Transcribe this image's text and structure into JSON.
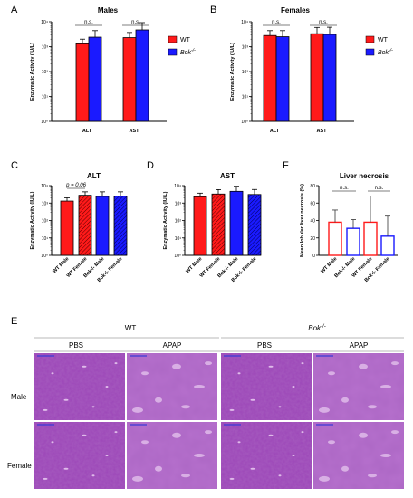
{
  "panel_labels": {
    "a": "A",
    "b": "B",
    "c": "C",
    "d": "D",
    "f": "F",
    "e": "E"
  },
  "legend": {
    "wt": "WT",
    "bok": "Bok",
    "bok_sup": "-/-"
  },
  "sig": {
    "ns": "n.s.",
    "p": "p = 0.06"
  },
  "yaxis_ticks": [
    "10⁴",
    "10³",
    "10²",
    "10¹",
    "10⁰"
  ],
  "yaxis_ticks_d": [
    "10⁴",
    "10³",
    "10²",
    "10¹",
    "10⁰"
  ],
  "necrosis_ticks": [
    "80",
    "60",
    "40",
    "20",
    "0"
  ],
  "histology": {
    "group_wt": "WT",
    "group_bok": "Bok",
    "group_bok_sup": "-/-",
    "cols": [
      "PBS",
      "APAP",
      "PBS",
      "APAP"
    ],
    "rows": [
      "Male",
      "Female"
    ]
  },
  "colors": {
    "wt": "#ff1a1a",
    "bok": "#1a1aff",
    "tissue": "#a84fc2",
    "tissue_dark": "#6a2c86",
    "tissue_light": "#e6c6ee"
  },
  "chart_data": [
    {
      "panel": "A",
      "type": "bar",
      "title": "Males",
      "ylabel": "Enzymatic Activity (IU/L)",
      "yscale": "log",
      "ylim": [
        1,
        10000
      ],
      "categories": [
        "ALT",
        "AST"
      ],
      "series": [
        {
          "name": "WT",
          "values": [
            1300,
            2300
          ],
          "err": [
            700,
            1400
          ]
        },
        {
          "name": "Bok-/-",
          "values": [
            2400,
            4700
          ],
          "err": [
            2000,
            4500
          ]
        }
      ],
      "annotations": [
        "n.s.",
        "n.s."
      ]
    },
    {
      "panel": "B",
      "type": "bar",
      "title": "Females",
      "ylabel": "Enzymatic Activity (IU/L)",
      "yscale": "log",
      "ylim": [
        1,
        10000
      ],
      "categories": [
        "ALT",
        "AST"
      ],
      "series": [
        {
          "name": "WT",
          "values": [
            2800,
            3300
          ],
          "err": [
            1600,
            2600
          ]
        },
        {
          "name": "Bok-/-",
          "values": [
            2500,
            3100
          ],
          "err": [
            1900,
            2900
          ]
        }
      ],
      "annotations": [
        "n.s.",
        "n.s."
      ]
    },
    {
      "panel": "C",
      "type": "bar",
      "title": "ALT",
      "ylabel": "Enzymatic Activity (IU/L)",
      "yscale": "log",
      "ylim": [
        1,
        10000
      ],
      "categories": [
        "WT Male",
        "WT Female",
        "Bok-/- Male",
        "Bok-/- Female"
      ],
      "values": [
        1300,
        2800,
        2400,
        2500
      ],
      "err": [
        700,
        1600,
        2000,
        1900
      ],
      "annotations": [
        "p = 0.06"
      ]
    },
    {
      "panel": "D",
      "type": "bar",
      "title": "AST",
      "ylabel": "Enzymatic Activity (IU/L)",
      "yscale": "log",
      "ylim": [
        1,
        10000
      ],
      "categories": [
        "WT Male",
        "WT Female",
        "Bok-/- Male",
        "Bok-/- Female"
      ],
      "values": [
        2300,
        3300,
        4700,
        3100
      ],
      "err": [
        1400,
        2600,
        4500,
        2900
      ]
    },
    {
      "panel": "F",
      "type": "bar",
      "title": "Liver necrosis",
      "ylabel": "Mean lobular liver necrosis (%)",
      "ylim": [
        0,
        80
      ],
      "categories": [
        "WT Male",
        "Bok-/- Male",
        "WT Female",
        "Bok-/- Female"
      ],
      "values": [
        38,
        31,
        38,
        22
      ],
      "err": [
        14,
        10,
        30,
        23
      ],
      "annotations": [
        "n.s.",
        "n.s."
      ]
    }
  ]
}
